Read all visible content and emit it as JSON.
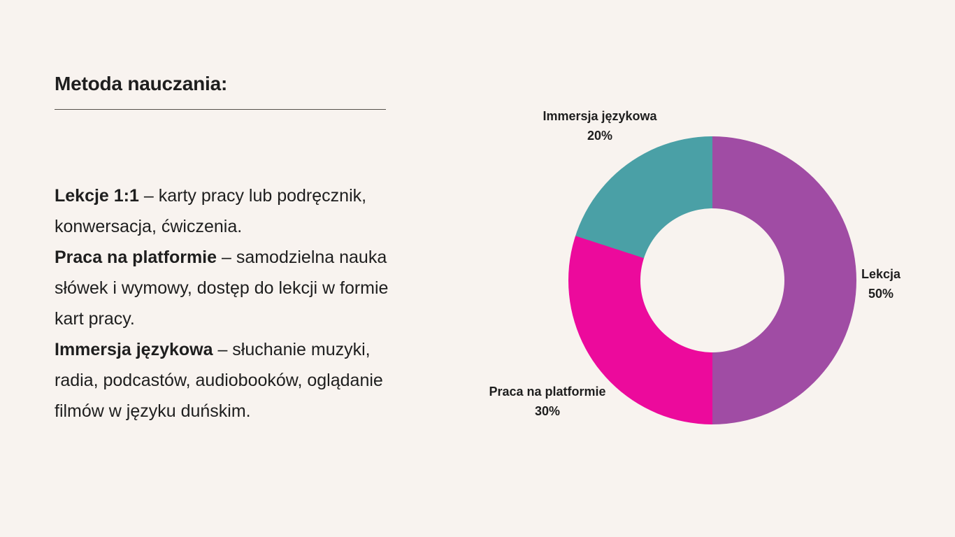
{
  "title": "Metoda nauczania:",
  "body": {
    "items": [
      {
        "term": "Lekcje 1:1",
        "desc": " – karty pracy lub podręcznik, konwersacja, ćwiczenia."
      },
      {
        "term": "Praca na platformie",
        "desc": " – samodzielna nauka słówek i wymowy, dostęp do lekcji w formie kart pracy."
      },
      {
        "term": "Immersja językowa",
        "desc": " – słuchanie muzyki, radia, podcastów, audiobooków, oglądanie filmów w języku duńskim."
      }
    ]
  },
  "colors": {
    "background": "#F8F3EF",
    "text": "#1E1E1E",
    "divider": "#55504B",
    "slice_lekcja": "#A04CA4",
    "slice_praca": "#EC0A9C",
    "slice_immersja": "#4AA0A6"
  },
  "chart_data": {
    "type": "pie",
    "subtype": "donut",
    "title": "",
    "direction": "clockwise",
    "start_angle_deg": 0,
    "inner_radius_ratio": 0.5,
    "legend_position": "outside-labels",
    "slices": [
      {
        "label": "Lekcja",
        "value": 50,
        "pct_label": "50%",
        "color": "#A04CA4"
      },
      {
        "label": "Praca na platformie",
        "value": 30,
        "pct_label": "30%",
        "color": "#EC0A9C"
      },
      {
        "label": "Immersja językowa",
        "value": 20,
        "pct_label": "20%",
        "color": "#4AA0A6"
      }
    ]
  }
}
